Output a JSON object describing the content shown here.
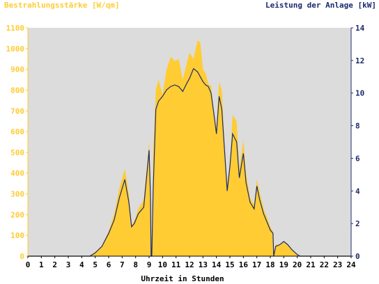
{
  "chart_data": {
    "type": "area",
    "left_axis_title": "Bestrahlungsstärke [W/qm]",
    "right_axis_title": "Leistung der Anlage [kW]",
    "xlabel": "Uhrzeit in Stunden",
    "xlim": [
      0,
      24
    ],
    "ylim_left": [
      0,
      1100
    ],
    "ylim_right": [
      0,
      14
    ],
    "x_ticks": [
      "0",
      "1",
      "2",
      "3",
      "4",
      "5",
      "6",
      "7",
      "8",
      "9",
      "10",
      "11",
      "12",
      "13",
      "14",
      "15",
      "16",
      "17",
      "18",
      "19",
      "20",
      "21",
      "22",
      "23",
      "24"
    ],
    "y_left_ticks": [
      "0",
      "100",
      "200",
      "300",
      "400",
      "500",
      "600",
      "700",
      "800",
      "900",
      "1000",
      "1100"
    ],
    "y_right_ticks": [
      "0",
      "2",
      "4",
      "6",
      "8",
      "10",
      "12",
      "14"
    ],
    "grid": false,
    "colors": {
      "irradiance": "#ffcc33",
      "power": "#1c2a6e",
      "plot_background": "#dcdcdc",
      "left_axis_text": "#ffcc33",
      "right_axis_text": "#1c2a6e"
    },
    "series": [
      {
        "axis": "left",
        "x": [
          0,
          4.6,
          5.0,
          5.5,
          6.0,
          6.4,
          6.8,
          7.2,
          7.5,
          7.7,
          7.9,
          8.2,
          8.6,
          8.9,
          9.0,
          9.1,
          9.15,
          9.2,
          9.3,
          9.5,
          9.7,
          10.0,
          10.3,
          10.6,
          10.9,
          11.2,
          11.5,
          11.8,
          12.0,
          12.3,
          12.6,
          12.8,
          13.0,
          13.2,
          13.4,
          13.6,
          13.8,
          14.0,
          14.2,
          14.4,
          14.6,
          14.8,
          15.0,
          15.2,
          15.5,
          15.7,
          16.0,
          16.2,
          16.5,
          16.8,
          17.0,
          17.2,
          17.5,
          17.8,
          18.0,
          18.2,
          18.25,
          18.4,
          18.7,
          19.0,
          19.3,
          19.6,
          20.0,
          20.2,
          24
        ],
        "values": [
          0,
          0,
          20,
          50,
          120,
          200,
          330,
          420,
          300,
          150,
          170,
          230,
          270,
          480,
          550,
          380,
          0,
          0,
          500,
          800,
          850,
          780,
          900,
          960,
          940,
          950,
          850,
          930,
          980,
          950,
          1040,
          1030,
          900,
          880,
          830,
          820,
          700,
          620,
          840,
          800,
          550,
          350,
          450,
          680,
          650,
          420,
          560,
          400,
          280,
          250,
          370,
          310,
          230,
          180,
          140,
          120,
          0,
          60,
          50,
          70,
          55,
          30,
          10,
          0,
          0
        ]
      },
      {
        "axis": "right",
        "x": [
          0,
          4.6,
          5.0,
          5.5,
          6.0,
          6.4,
          6.8,
          7.2,
          7.5,
          7.7,
          7.9,
          8.2,
          8.6,
          8.9,
          9.0,
          9.1,
          9.15,
          9.2,
          9.3,
          9.5,
          9.7,
          10.0,
          10.3,
          10.6,
          10.9,
          11.2,
          11.5,
          11.8,
          12.0,
          12.3,
          12.6,
          12.8,
          13.0,
          13.2,
          13.4,
          13.6,
          13.8,
          14.0,
          14.2,
          14.4,
          14.6,
          14.8,
          15.0,
          15.2,
          15.5,
          15.7,
          16.0,
          16.2,
          16.5,
          16.8,
          17.0,
          17.2,
          17.5,
          17.8,
          18.0,
          18.2,
          18.25,
          18.4,
          18.7,
          19.0,
          19.3,
          19.6,
          20.0,
          20.2,
          24
        ],
        "values": [
          0,
          0,
          0.2,
          0.6,
          1.4,
          2.2,
          3.6,
          4.7,
          3.3,
          1.8,
          2.0,
          2.6,
          3.0,
          5.6,
          6.5,
          3.8,
          0,
          0,
          4.0,
          9.0,
          9.5,
          9.8,
          10.2,
          10.4,
          10.5,
          10.4,
          10.1,
          10.6,
          10.9,
          11.5,
          11.3,
          11.0,
          10.7,
          10.5,
          10.4,
          10.0,
          8.8,
          7.5,
          9.8,
          9.0,
          6.5,
          4.0,
          5.5,
          7.5,
          7.0,
          4.8,
          6.3,
          4.5,
          3.3,
          2.9,
          4.3,
          3.5,
          2.6,
          2.0,
          1.6,
          1.4,
          0,
          0.6,
          0.7,
          0.9,
          0.7,
          0.4,
          0.1,
          0,
          0
        ]
      }
    ]
  }
}
